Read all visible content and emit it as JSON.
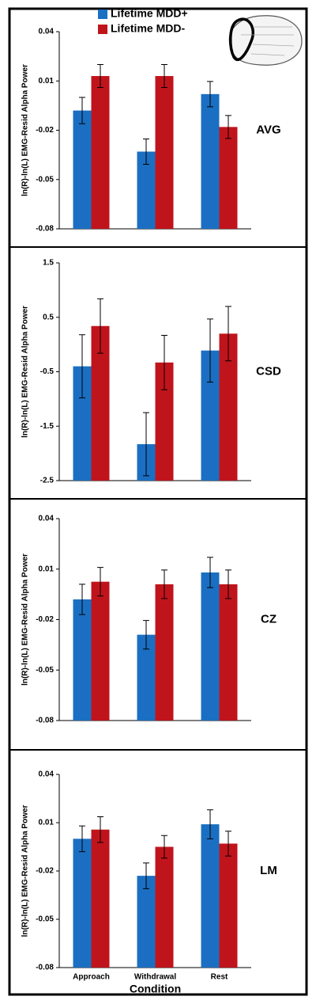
{
  "chart_data": [
    {
      "type": "bar",
      "annotation": "AVG",
      "ylabel": "ln(R)-ln(L) EMG-Resid Alpha Power",
      "ylim": [
        -0.08,
        0.04
      ],
      "yticks": [
        0.04,
        0.01,
        -0.02,
        -0.05,
        -0.08
      ],
      "series": [
        {
          "name": "Lifetime MDD+",
          "color": "#1b6fc2",
          "values": [
            -0.008,
            -0.033,
            0.002
          ],
          "errors": [
            0.008,
            0.0077,
            0.0077
          ]
        },
        {
          "name": "Lifetime MDD-",
          "color": "#c0141c",
          "values": [
            0.013,
            0.013,
            -0.018
          ],
          "errors": [
            0.007,
            0.007,
            0.007
          ]
        }
      ]
    },
    {
      "type": "bar",
      "annotation": "CSD",
      "ylabel": "ln(R)-ln(L) EMG-Resid Alpha Power",
      "ylim": [
        -2.5,
        1.5
      ],
      "yticks": [
        1.5,
        0.5,
        -0.5,
        -1.5,
        -2.5
      ],
      "series": [
        {
          "color": "#1b6fc2",
          "values": [
            -0.4,
            -1.83,
            -0.11
          ],
          "errors": [
            0.58,
            0.58,
            0.58
          ]
        },
        {
          "color": "#c0141c",
          "values": [
            0.34,
            -0.33,
            0.2
          ],
          "errors": [
            0.5,
            0.5,
            0.5
          ]
        }
      ]
    },
    {
      "type": "bar",
      "annotation": "CZ",
      "ylabel": "ln(R)-ln(L) EMG-Resid Alpha Power",
      "ylim": [
        -0.08,
        0.04
      ],
      "yticks": [
        0.04,
        0.01,
        -0.02,
        -0.05,
        -0.08
      ],
      "series": [
        {
          "color": "#1b6fc2",
          "values": [
            -0.008,
            -0.029,
            0.008
          ],
          "errors": [
            0.009,
            0.0085,
            0.009
          ]
        },
        {
          "color": "#c0141c",
          "values": [
            0.0025,
            0.001,
            0.001
          ],
          "errors": [
            0.0085,
            0.0085,
            0.0085
          ]
        }
      ]
    },
    {
      "type": "bar",
      "annotation": "LM",
      "ylabel": "ln(R)-ln(L) EMG-Resid Alpha Power",
      "xlabel": "Condition",
      "categories": [
        "Approach",
        "Withdrawal",
        "Rest"
      ],
      "ylim": [
        -0.08,
        0.04
      ],
      "yticks": [
        0.04,
        0.01,
        -0.02,
        -0.05,
        -0.08
      ],
      "series": [
        {
          "color": "#1b6fc2",
          "values": [
            0,
            -0.023,
            0.009
          ],
          "errors": [
            0.008,
            0.008,
            0.009
          ]
        },
        {
          "color": "#c0141c",
          "values": [
            0.0057,
            -0.005,
            -0.003
          ],
          "errors": [
            0.008,
            0.007,
            0.0077
          ]
        }
      ]
    }
  ]
}
